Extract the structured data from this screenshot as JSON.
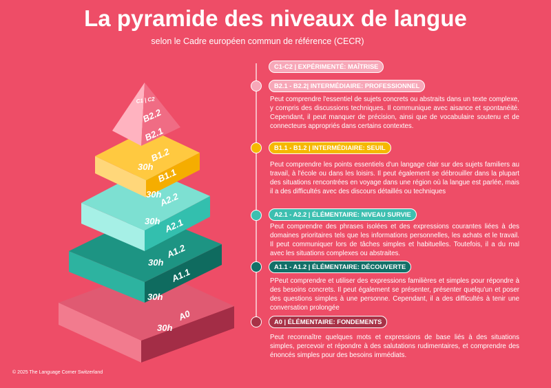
{
  "header": {
    "title": "La pyramide des niveaux de langue",
    "subtitle": "selon le Cadre européen commun de référence (CECR)"
  },
  "pyramid": {
    "labels": [
      "C1 | C2",
      "B2.2",
      "B2.1",
      "30h",
      "B1.2",
      "B1.1",
      "30h",
      "A2.2",
      "30h",
      "A2.1",
      "A1.2",
      "30h",
      "A1.1",
      "30h",
      "A0",
      "30h"
    ]
  },
  "levels": [
    {
      "header": "C1-C2 | EXPÉRIMENTÉ: MAÎTRISE"
    },
    {
      "header": "B2.1 - B2.2| INTERMÉDIAIRE: PROFESSIONNEL",
      "description": "Peut comprendre l'essentiel de sujets concrets ou abstraits dans un texte complexe, y compris des discussions techniques. Il communique avec aisance et spontanéité. Cependant, il peut manquer de précision, ainsi que de vocabulaire soutenu et de connecteurs appropriés dans certains contextes."
    },
    {
      "header": "B1.1 - B1.2 | INTERMÉDIAIRE: SEUIL",
      "description": "Peut comprendre les points essentiels d'un langage clair sur des sujets familiers au travail, à l'école ou dans les loisirs. Il peut également se débrouiller dans la plupart des situations rencontrées en voyage dans une région où la langue est parlée, mais il a des difficultés avec des discours détaillés ou techniques"
    },
    {
      "header": "A2.1 - A2.2 | ÉLÉMENTAIRE: NIVEAU SURVIE",
      "description": "Peut comprendre des phrases isolées et des expressions courantes liées à des domaines prioritaires tels que les informations personnelles, les achats et le travail. Il peut communiquer lors de tâches simples et habituelles. Toutefois, il a du mal avec les situations complexes ou abstraites."
    },
    {
      "header": "A1.1 - A1.2 | ÉLÉMENTAIRE: DÉCOUVERTE",
      "description": "PPeut comprendre et utiliser des expressions familières et simples pour répondre à des besoins concrets. Il peut également se présenter, présenter quelqu'un et poser des questions simples à une personne. Cependant, il a des difficultés à tenir une conversation prolongée"
    },
    {
      "header": "A0 | ÉLÉMENTAIRE: FONDEMENTS",
      "description": "Peut reconnaître quelques mots et expressions de base liés à des situations simples, percevoir et répondre à des salutations rudimentaires, et comprendre des énoncés simples pour des besoins immédiats."
    }
  ],
  "footer": "© 2025 The Language Corner Switzerland"
}
